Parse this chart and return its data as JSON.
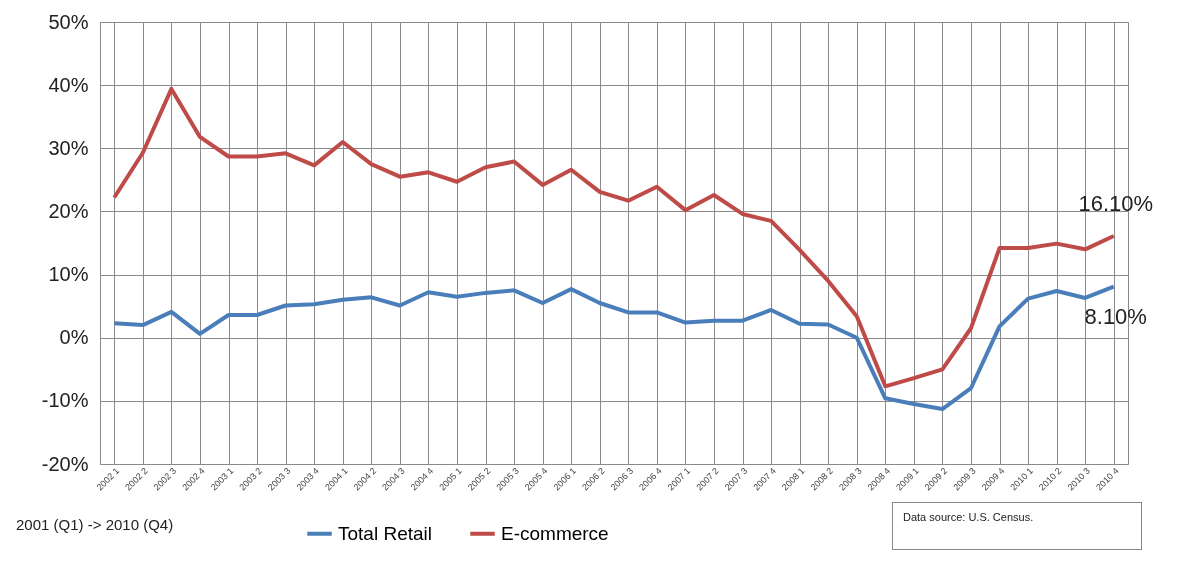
{
  "chart_data": {
    "type": "line",
    "categories": [
      "2002 1",
      "2002 2",
      "2002 3",
      "2002 4",
      "2003 1",
      "2003 2",
      "2003 3",
      "2003 4",
      "2004 1",
      "2004 2",
      "2004 3",
      "2004 4",
      "2005 1",
      "2005 2",
      "2005 3",
      "2005 4",
      "2006 1",
      "2006 2",
      "2006 3",
      "2006 4",
      "2007 1",
      "2007 2",
      "2007 3",
      "2007 4",
      "2008 1",
      "2008 2",
      "2008 3",
      "2008 4",
      "2009 1",
      "2009 2",
      "2009 3",
      "2009 4",
      "2010 1",
      "2010 2",
      "2010 3",
      "2010 4"
    ],
    "series": [
      {
        "name": "Total Retail",
        "color": "#4a7ebb",
        "values": [
          2.3,
          2.0,
          4.1,
          0.6,
          3.6,
          3.6,
          5.1,
          5.3,
          6.0,
          6.4,
          5.1,
          7.2,
          6.5,
          7.1,
          7.5,
          5.5,
          7.7,
          5.5,
          4.0,
          4.0,
          2.4,
          2.7,
          2.7,
          4.4,
          2.2,
          2.1,
          0.0,
          -9.6,
          -10.5,
          -11.3,
          -8.0,
          1.8,
          6.2,
          7.4,
          6.3,
          8.1
        ]
      },
      {
        "name": "E-commerce",
        "color": "#be4b48",
        "values": [
          22.2,
          29.3,
          39.4,
          31.8,
          28.7,
          28.7,
          29.2,
          27.3,
          31.0,
          27.5,
          25.5,
          26.2,
          24.7,
          27.0,
          27.9,
          24.2,
          26.6,
          23.1,
          21.7,
          23.9,
          20.2,
          22.6,
          19.6,
          18.5,
          13.9,
          9.0,
          3.4,
          -7.7,
          -6.4,
          -5.0,
          1.5,
          14.2,
          14.2,
          14.9,
          14.0,
          16.1
        ]
      }
    ],
    "ylim": [
      -20,
      50
    ],
    "yticks": [
      {
        "value": -20,
        "label": "-20%"
      },
      {
        "value": -10,
        "label": "-10%"
      },
      {
        "value": 0,
        "label": "0%"
      },
      {
        "value": 10,
        "label": "10%"
      },
      {
        "value": 20,
        "label": "20%"
      },
      {
        "value": 30,
        "label": "30%"
      },
      {
        "value": 40,
        "label": "40%"
      },
      {
        "value": 50,
        "label": "50%"
      }
    ],
    "grid": true,
    "legend": "bottom",
    "marker": "none",
    "line_style": "solid",
    "annotations": [
      "2001 (Q1) -> 2010 (Q4)",
      "Data source: U.S. Census.",
      {
        "text": "16.10%",
        "x": "2010 4",
        "y": 16.1
      },
      {
        "text": "8.10%",
        "x": "2010 4",
        "y": 8.1
      }
    ]
  }
}
